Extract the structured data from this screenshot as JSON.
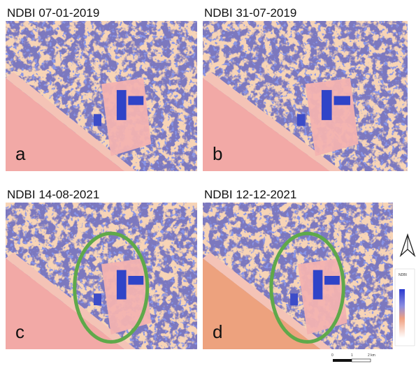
{
  "panels": [
    {
      "title": "NDBI 07-01-2019",
      "label": "a"
    },
    {
      "title": "NDBI 31-07-2019",
      "label": "b"
    },
    {
      "title": "NDBI 14-08-2021",
      "label": "c"
    },
    {
      "title": "NDBI 12-12-2021",
      "label": "d"
    }
  ],
  "legend": {
    "title": "NDBI"
  },
  "scale_bar": {
    "labels": [
      "0",
      "1",
      "2 km"
    ]
  }
}
